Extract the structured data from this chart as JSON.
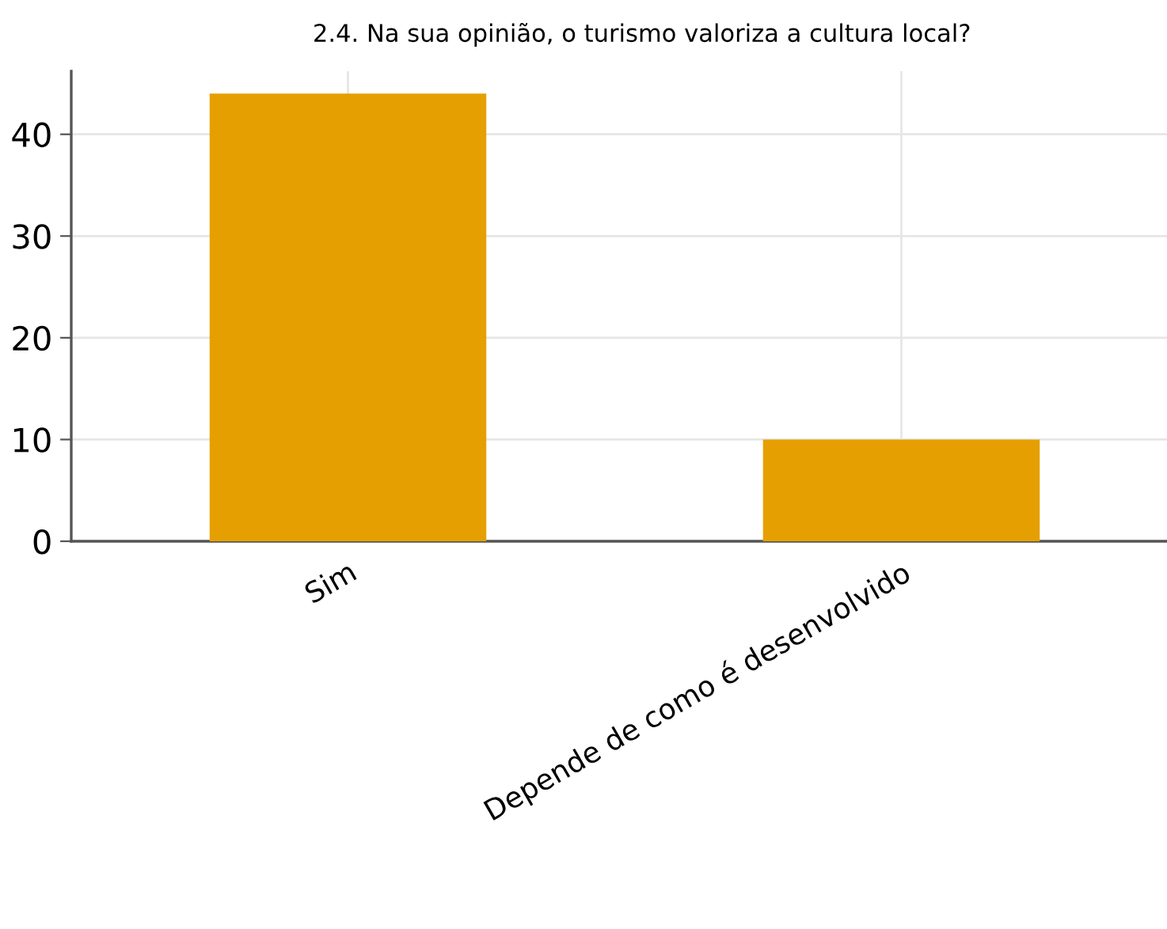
{
  "chart_data": {
    "type": "bar",
    "title": "2.4. Na sua opinião, o turismo valoriza a cultura local?",
    "categories": [
      "Sim",
      "Depende de como é desenvolvido"
    ],
    "values": [
      44,
      10
    ],
    "color": "#e69f00",
    "ylim": [
      0,
      46.2
    ],
    "yticks": [
      0,
      10,
      20,
      30,
      40
    ],
    "grid": true
  }
}
